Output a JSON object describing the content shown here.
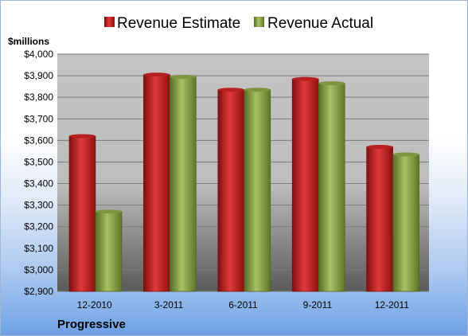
{
  "chart_data": {
    "type": "bar",
    "unit_label": "$millions",
    "company": "Progressive",
    "categories": [
      "12-2010",
      "3-2011",
      "6-2011",
      "9-2011",
      "12-2011"
    ],
    "series": [
      {
        "name": "Revenue Estimate",
        "color": "#c81e1e",
        "values": [
          3620,
          3905,
          3835,
          3885,
          3570
        ]
      },
      {
        "name": "Revenue Actual",
        "color": "#8aa24a",
        "values": [
          3270,
          3895,
          3835,
          3865,
          3535
        ]
      }
    ],
    "ylim": [
      2900,
      4000
    ],
    "ytick_step": 100,
    "ytick_labels": [
      "$2,900",
      "$3,000",
      "$3,100",
      "$3,200",
      "$3,300",
      "$3,400",
      "$3,500",
      "$3,600",
      "$3,700",
      "$3,800",
      "$3,900",
      "$4,000"
    ],
    "grid": true,
    "legend_position": "top"
  }
}
